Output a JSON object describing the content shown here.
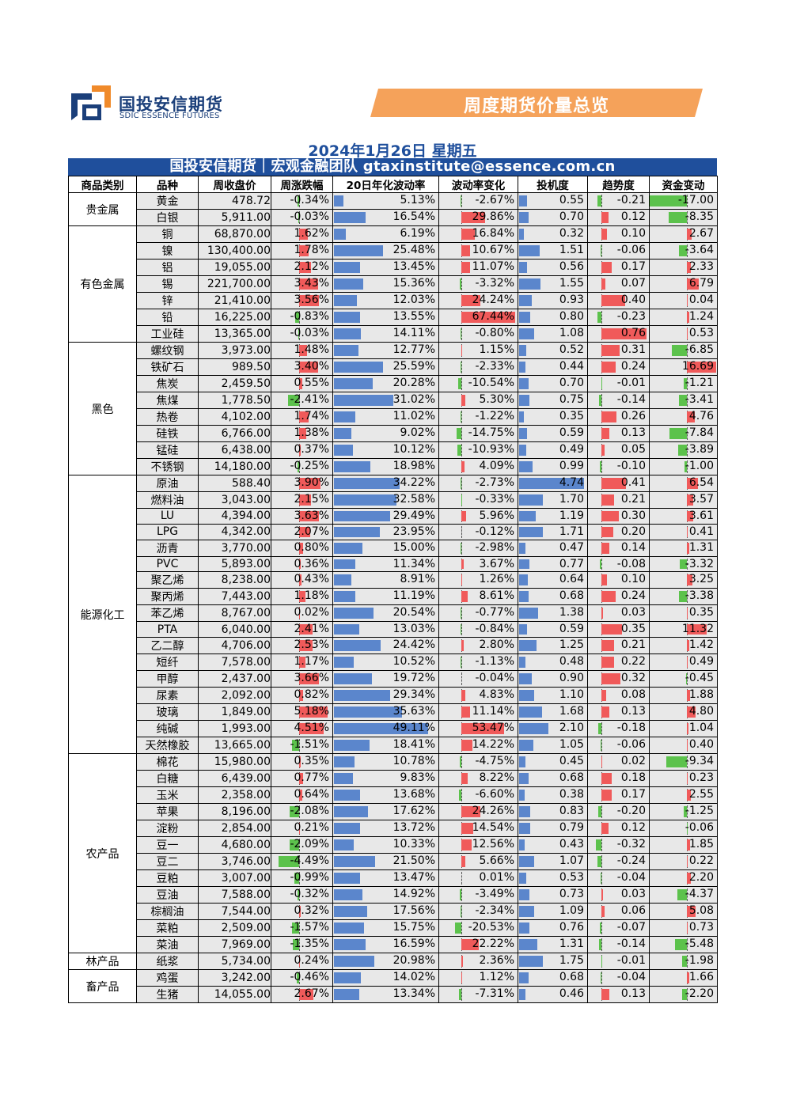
{
  "header": {
    "logo_cn": "国投安信期货",
    "logo_en": "SDIC ESSENCE FUTURES",
    "banner_title": "周度期货价量总览",
    "date_line": "2024年1月26日 星期五",
    "team_line": "国投安信期货｜宏观金融团队 gtaxinstitute@essence.com.cn"
  },
  "colors": {
    "brand_blue": "#1f4f9c",
    "banner_orange": "#f5a25a",
    "up_red": "#f05a5a",
    "down_green": "#5cc24c",
    "vol_blue": "#5b86cc"
  },
  "columns": [
    "商品类别",
    "品种",
    "周收盘价",
    "周涨跌幅",
    "20日年化波动率",
    "波动率变化",
    "投机度",
    "趋势度",
    "资金变动"
  ],
  "categories": [
    {
      "name": "贵金属",
      "rows": [
        [
          "黄金",
          "478.72",
          "-0.34%",
          "5.13%",
          "-2.67%",
          "0.55",
          "-0.21",
          "-17.00"
        ],
        [
          "白银",
          "5,911.00",
          "-0.03%",
          "16.54%",
          "29.86%",
          "0.70",
          "0.12",
          "-8.35"
        ]
      ]
    },
    {
      "name": "有色金属",
      "rows": [
        [
          "铜",
          "68,870.00",
          "1.62%",
          "6.19%",
          "16.84%",
          "0.32",
          "0.10",
          "2.67"
        ],
        [
          "镍",
          "130,400.00",
          "1.78%",
          "25.48%",
          "10.67%",
          "1.51",
          "-0.06",
          "-3.64"
        ],
        [
          "铝",
          "19,055.00",
          "2.12%",
          "13.45%",
          "11.07%",
          "0.56",
          "0.17",
          "2.33"
        ],
        [
          "锡",
          "221,700.00",
          "3.43%",
          "15.36%",
          "-3.32%",
          "1.55",
          "0.07",
          "6.79"
        ],
        [
          "锌",
          "21,410.00",
          "3.56%",
          "12.03%",
          "24.24%",
          "0.93",
          "0.40",
          "0.04"
        ],
        [
          "铅",
          "16,225.00",
          "-0.83%",
          "13.55%",
          "67.44%",
          "0.80",
          "-0.23",
          "1.24"
        ],
        [
          "工业硅",
          "13,365.00",
          "-0.03%",
          "14.11%",
          "-0.80%",
          "1.08",
          "0.76",
          "0.53"
        ]
      ]
    },
    {
      "name": "黑色",
      "rows": [
        [
          "螺纹钢",
          "3,973.00",
          "1.48%",
          "12.77%",
          "1.15%",
          "0.52",
          "0.31",
          "-6.85"
        ],
        [
          "铁矿石",
          "989.50",
          "3.40%",
          "25.59%",
          "-2.33%",
          "0.44",
          "0.24",
          "16.69"
        ],
        [
          "焦炭",
          "2,459.50",
          "0.55%",
          "20.28%",
          "-10.54%",
          "0.70",
          "-0.01",
          "-1.21"
        ],
        [
          "焦煤",
          "1,778.50",
          "-2.41%",
          "31.02%",
          "5.30%",
          "0.75",
          "-0.14",
          "-3.41"
        ],
        [
          "热卷",
          "4,102.00",
          "1.74%",
          "11.02%",
          "-1.22%",
          "0.35",
          "0.26",
          "4.76"
        ],
        [
          "硅铁",
          "6,766.00",
          "1.38%",
          "9.02%",
          "-14.75%",
          "0.59",
          "0.13",
          "-7.84"
        ],
        [
          "锰硅",
          "6,438.00",
          "0.37%",
          "10.12%",
          "-10.93%",
          "0.49",
          "0.05",
          "-3.89"
        ],
        [
          "不锈钢",
          "14,180.00",
          "-0.25%",
          "18.98%",
          "4.09%",
          "0.99",
          "-0.10",
          "-1.00"
        ]
      ]
    },
    {
      "name": "能源化工",
      "rows": [
        [
          "原油",
          "588.40",
          "3.90%",
          "34.22%",
          "-2.73%",
          "4.74",
          "0.41",
          "6.54"
        ],
        [
          "燃料油",
          "3,043.00",
          "2.15%",
          "32.58%",
          "-0.33%",
          "1.70",
          "0.21",
          "3.57"
        ],
        [
          "LU",
          "4,394.00",
          "3.63%",
          "29.49%",
          "5.96%",
          "1.19",
          "0.30",
          "3.61"
        ],
        [
          "LPG",
          "4,342.00",
          "2.07%",
          "23.95%",
          "-0.12%",
          "1.71",
          "0.20",
          "0.41"
        ],
        [
          "沥青",
          "3,770.00",
          "0.80%",
          "15.00%",
          "-2.98%",
          "0.47",
          "0.14",
          "1.31"
        ],
        [
          "PVC",
          "5,893.00",
          "0.36%",
          "11.34%",
          "3.67%",
          "0.77",
          "-0.08",
          "-3.32"
        ],
        [
          "聚乙烯",
          "8,238.00",
          "0.43%",
          "8.91%",
          "1.26%",
          "0.64",
          "0.10",
          "3.25"
        ],
        [
          "聚丙烯",
          "7,443.00",
          "1.18%",
          "11.19%",
          "8.61%",
          "0.68",
          "0.24",
          "-3.38"
        ],
        [
          "苯乙烯",
          "8,767.00",
          "0.02%",
          "20.54%",
          "-0.77%",
          "1.38",
          "0.03",
          "0.35"
        ],
        [
          "PTA",
          "6,040.00",
          "2.41%",
          "13.03%",
          "-0.84%",
          "0.59",
          "0.35",
          "11.32"
        ],
        [
          "乙二醇",
          "4,706.00",
          "2.53%",
          "24.42%",
          "2.80%",
          "1.25",
          "0.21",
          "1.42"
        ],
        [
          "短纤",
          "7,578.00",
          "1.17%",
          "10.52%",
          "-1.13%",
          "0.48",
          "0.22",
          "0.49"
        ],
        [
          "甲醇",
          "2,437.00",
          "3.66%",
          "19.72%",
          "-0.04%",
          "0.90",
          "0.32",
          "-0.45"
        ],
        [
          "尿素",
          "2,092.00",
          "0.82%",
          "29.34%",
          "4.83%",
          "1.10",
          "0.08",
          "1.88"
        ],
        [
          "玻璃",
          "1,849.00",
          "5.18%",
          "35.63%",
          "11.14%",
          "1.68",
          "0.13",
          "4.80"
        ],
        [
          "纯碱",
          "1,993.00",
          "4.51%",
          "49.11%",
          "53.47%",
          "2.10",
          "-0.18",
          "1.04"
        ],
        [
          "天然橡胶",
          "13,665.00",
          "-1.51%",
          "18.41%",
          "14.22%",
          "1.05",
          "-0.06",
          "0.40"
        ]
      ]
    },
    {
      "name": "农产品",
      "rows": [
        [
          "棉花",
          "15,980.00",
          "0.35%",
          "10.78%",
          "-4.75%",
          "0.45",
          "0.02",
          "-9.34"
        ],
        [
          "白糖",
          "6,439.00",
          "0.77%",
          "9.83%",
          "8.22%",
          "0.68",
          "0.18",
          "0.23"
        ],
        [
          "玉米",
          "2,358.00",
          "0.64%",
          "13.68%",
          "-6.60%",
          "0.38",
          "0.17",
          "2.55"
        ],
        [
          "苹果",
          "8,196.00",
          "-2.08%",
          "17.62%",
          "24.26%",
          "0.83",
          "-0.20",
          "-1.25"
        ],
        [
          "淀粉",
          "2,854.00",
          "0.21%",
          "13.72%",
          "14.54%",
          "0.79",
          "0.12",
          "-0.06"
        ],
        [
          "豆一",
          "4,680.00",
          "-2.09%",
          "10.33%",
          "12.56%",
          "0.43",
          "-0.32",
          "1.85"
        ],
        [
          "豆二",
          "3,746.00",
          "-4.49%",
          "21.50%",
          "5.66%",
          "1.07",
          "-0.24",
          "0.22"
        ],
        [
          "豆粕",
          "3,007.00",
          "-0.99%",
          "13.47%",
          "0.01%",
          "0.53",
          "-0.04",
          "2.20"
        ],
        [
          "豆油",
          "7,588.00",
          "-0.32%",
          "14.92%",
          "-3.49%",
          "0.73",
          "0.03",
          "-4.37"
        ],
        [
          "棕榈油",
          "7,544.00",
          "0.32%",
          "17.56%",
          "-2.34%",
          "1.09",
          "0.06",
          "5.08"
        ],
        [
          "菜粕",
          "2,509.00",
          "-1.57%",
          "15.75%",
          "-20.53%",
          "0.76",
          "-0.07",
          "0.73"
        ],
        [
          "菜油",
          "7,969.00",
          "-1.35%",
          "16.59%",
          "22.22%",
          "1.31",
          "-0.14",
          "-5.48"
        ]
      ]
    },
    {
      "name": "林产品",
      "rows": [
        [
          "纸浆",
          "5,734.00",
          "0.24%",
          "20.98%",
          "2.36%",
          "1.75",
          "-0.01",
          "-1.98"
        ]
      ]
    },
    {
      "name": "畜产品",
      "rows": [
        [
          "鸡蛋",
          "3,242.00",
          "-0.46%",
          "14.02%",
          "1.12%",
          "0.68",
          "-0.04",
          "1.66"
        ],
        [
          "生猪",
          "14,055.00",
          "2.67%",
          "13.34%",
          "-7.31%",
          "0.46",
          "0.13",
          "-2.20"
        ]
      ]
    }
  ]
}
